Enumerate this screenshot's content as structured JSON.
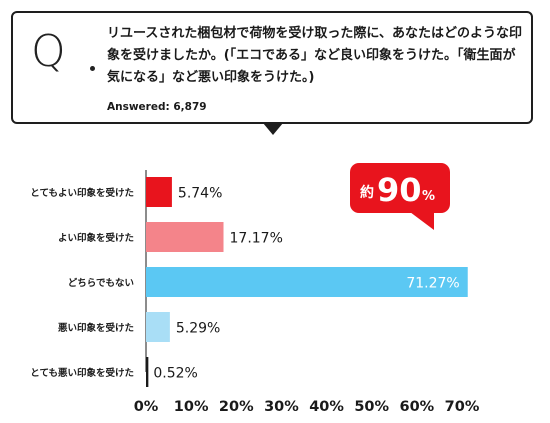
{
  "question": {
    "letter": "Q",
    "text": "リユースされた梱包材で荷物を受け取った際に、あなたはどのような印象を受けましたか。(「エコである」など良い印象をうけた。「衛生面が気になる」など悪い印象をうけた。)",
    "answered": "Answered: 6,879"
  },
  "badge": {
    "prefix": "約",
    "value": "90",
    "unit": "%"
  },
  "colors": {
    "accent_red": "#e8141d"
  },
  "chart_data": {
    "type": "bar",
    "orientation": "horizontal",
    "title": "",
    "xlabel": "",
    "ylabel": "",
    "categories": [
      "とてもよい印象を受けた",
      "よい印象を受けた",
      "どちらでもない",
      "悪い印象を受けた",
      "とても悪い印象を受けた"
    ],
    "values": [
      5.74,
      17.17,
      71.27,
      5.29,
      0.52
    ],
    "value_labels": [
      "5.74%",
      "17.17%",
      "71.27%",
      "5.29%",
      "0.52%"
    ],
    "colors": [
      "#e8141d",
      "#f4848a",
      "#5bc8f3",
      "#a9def6",
      "#1a1a1a"
    ],
    "xlim": [
      0,
      70
    ],
    "xticks": [
      0,
      10,
      20,
      30,
      40,
      50,
      60,
      70
    ],
    "xtick_labels": [
      "0%",
      "10%",
      "20%",
      "30%",
      "40%",
      "50%",
      "60%",
      "70%"
    ],
    "grid": false,
    "legend": "none"
  }
}
